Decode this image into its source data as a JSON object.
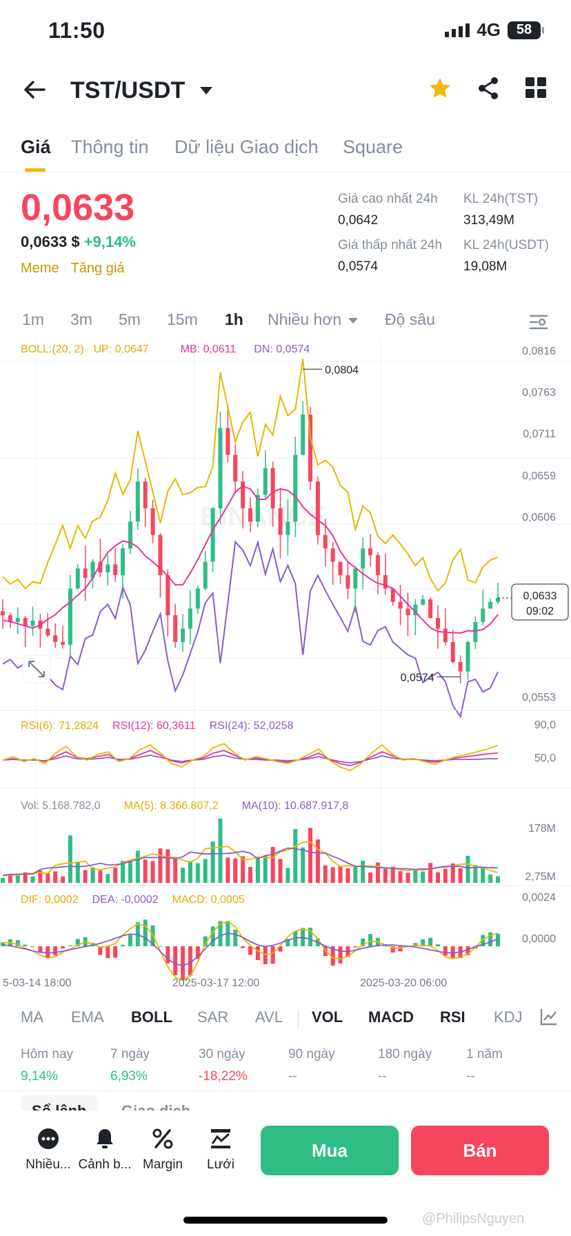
{
  "status_bar": {
    "time": "11:50",
    "network": "4G",
    "battery": "58"
  },
  "header": {
    "pair": "TST/USDT"
  },
  "tabs": [
    {
      "label": "Giá"
    },
    {
      "label": "Thông tin"
    },
    {
      "label": "Dữ liệu Giao dịch"
    },
    {
      "label": "Square"
    }
  ],
  "price": {
    "last": "0,0633",
    "last_usd": "0,0633 $",
    "change": "+9,14%",
    "tags": [
      "Meme",
      "Tăng giá"
    ]
  },
  "stats": {
    "high_label": "Giá cao nhất 24h",
    "high_value": "0,0642",
    "low_label": "Giá thấp nhất 24h",
    "low_value": "0,0574",
    "vol_base_label": "KL 24h(TST)",
    "vol_base_value": "313,49M",
    "vol_quote_label": "KL 24h(USDT)",
    "vol_quote_value": "19,08M"
  },
  "intervals": [
    "1m",
    "3m",
    "5m",
    "15m",
    "1h",
    "Nhiều hơn",
    "Độ sâu"
  ],
  "boll_legend": {
    "name": "BOLL:(20, 2)",
    "up": "UP: 0,0647",
    "mb": "MB: 0,0611",
    "dn": "DN: 0,0574"
  },
  "price_axis": [
    "0,0816",
    "0,0763",
    "0,0711",
    "0,0659",
    "0,0606",
    "0,0553"
  ],
  "chart_labels": {
    "high_marker": "0,0804",
    "low_marker": "0,0574",
    "current_price": "0,0633",
    "countdown": "09:02",
    "watermark": "BINANCE"
  },
  "rsi_legend": {
    "rsi6": "RSI(6): 71,2824",
    "rsi12": "RSI(12): 60,3611",
    "rsi24": "RSI(24): 52,0258"
  },
  "rsi_axis": [
    "90,0",
    "50,0"
  ],
  "vol_legend": {
    "vol": "Vol: 5.168.782,0",
    "ma5": "MA(5): 8.366.807,2",
    "ma10": "MA(10): 10.687.917,8"
  },
  "vol_axis": [
    "178M",
    "2,75M"
  ],
  "macd_legend": {
    "dif": "DIF: 0,0002",
    "dea": "DEA: -0,0002",
    "macd": "MACD: 0,0005"
  },
  "macd_axis": [
    "0,0024",
    "0,0000"
  ],
  "time_axis": [
    "5-03-14 18:00",
    "2025-03-17 12:00",
    "2025-03-20 06:00"
  ],
  "indicator_tabs": [
    "MA",
    "EMA",
    "BOLL",
    "SAR",
    "AVL",
    "VOL",
    "MACD",
    "RSI",
    "KDJ"
  ],
  "performance": [
    {
      "label": "Hôm nay",
      "value": "9,14%"
    },
    {
      "label": "7 ngày",
      "value": "6,93%"
    },
    {
      "label": "30 ngày",
      "value": "-18,22%"
    },
    {
      "label": "90 ngày",
      "value": "--"
    },
    {
      "label": "180 ngày",
      "value": "--"
    },
    {
      "label": "1 năm",
      "value": "--"
    }
  ],
  "partial_tabs": [
    "Sổ lệnh",
    "Giao dịch"
  ],
  "bottom_bar": {
    "more": "Nhiều...",
    "alert": "Cảnh b...",
    "margin": "Margin",
    "grid": "Lưới",
    "buy": "Mua",
    "sell": "Bán"
  },
  "watermark_user": "@PhilipsNguyen",
  "colors": {
    "up": "#2ebd85",
    "down": "#f6465d",
    "accent": "#f0b90b",
    "boll_up": "#e6b800",
    "boll_mb": "#e8339c",
    "boll_dn": "#8a5cc7"
  },
  "chart_data": {
    "type": "candlestick",
    "pair": "TST/USDT",
    "interval": "1h",
    "ylim": [
      0.0553,
      0.0816
    ],
    "period_high": 0.0804,
    "period_low": 0.0574,
    "last_price": 0.0633,
    "closes": [
      0.062,
      0.0615,
      0.0618,
      0.0612,
      0.0616,
      0.061,
      0.0605,
      0.06,
      0.0598,
      0.064,
      0.0655,
      0.0648,
      0.066,
      0.0652,
      0.0658,
      0.065,
      0.067,
      0.069,
      0.072,
      0.07,
      0.068,
      0.065,
      0.062,
      0.06,
      0.061,
      0.0625,
      0.064,
      0.066,
      0.07,
      0.076,
      0.074,
      0.072,
      0.07,
      0.069,
      0.071,
      0.073,
      0.07,
      0.068,
      0.069,
      0.074,
      0.077,
      0.072,
      0.068,
      0.067,
      0.066,
      0.065,
      0.064,
      0.0655,
      0.067,
      0.0665,
      0.065,
      0.064,
      0.063,
      0.0625,
      0.062,
      0.0628,
      0.0632,
      0.0618,
      0.061,
      0.06,
      0.0585,
      0.0578,
      0.06,
      0.0615,
      0.0625,
      0.063,
      0.0633
    ],
    "boll": {
      "up": 0.0647,
      "mb": 0.0611,
      "dn": 0.0574
    },
    "rsi": {
      "rsi6": [
        50,
        55,
        48,
        52,
        45,
        60,
        70,
        55,
        50,
        58,
        62,
        48,
        52,
        65,
        72,
        60,
        45,
        40,
        50,
        55,
        68,
        74,
        60,
        50,
        55,
        52,
        48,
        45,
        50,
        58,
        66,
        50,
        40,
        35,
        45,
        60,
        72,
        58,
        50,
        52,
        48,
        44,
        50,
        55,
        58,
        62,
        66,
        71.28
      ],
      "rsi12": [
        50,
        52,
        49,
        51,
        48,
        55,
        62,
        54,
        52,
        55,
        58,
        50,
        52,
        58,
        64,
        57,
        49,
        46,
        50,
        53,
        60,
        64,
        57,
        51,
        53,
        51,
        49,
        47,
        50,
        54,
        60,
        51,
        45,
        42,
        47,
        55,
        62,
        56,
        51,
        52,
        49,
        47,
        50,
        53,
        55,
        57,
        59,
        60.36
      ],
      "rsi24": [
        50,
        51,
        50,
        50,
        49,
        52,
        56,
        52,
        51,
        52,
        54,
        51,
        51,
        54,
        57,
        54,
        50,
        48,
        50,
        51,
        55,
        57,
        53,
        51,
        51,
        50,
        50,
        49,
        50,
        52,
        55,
        51,
        48,
        46,
        48,
        52,
        56,
        53,
        51,
        51,
        50,
        49,
        50,
        51,
        51,
        51,
        52,
        52.03
      ]
    },
    "volume": {
      "last": 5168782.0,
      "ma5": 8366807.2,
      "ma10": 10687917.8,
      "ylim": [
        2750000,
        178000000
      ]
    },
    "macd": {
      "dif": 0.0002,
      "dea": -0.0002,
      "macd": 0.0005
    }
  }
}
